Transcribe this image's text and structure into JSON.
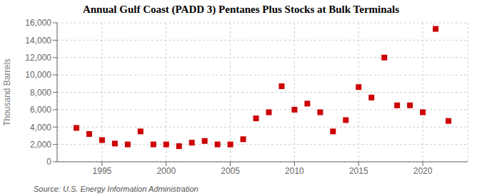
{
  "chart_data": {
    "type": "scatter",
    "title": "Annual Gulf Coast (PADD 3) Pentanes Plus Stocks at Bulk Terminals",
    "ylabel": "Thousand Barrels",
    "source": "Source: U.S. Energy Information Administration",
    "x": [
      1993,
      1994,
      1995,
      1996,
      1997,
      1998,
      1999,
      2000,
      2001,
      2002,
      2003,
      2004,
      2005,
      2006,
      2007,
      2008,
      2009,
      2010,
      2011,
      2012,
      2013,
      2014,
      2015,
      2016,
      2017,
      2018,
      2019,
      2020,
      2021,
      2022
    ],
    "values": [
      3900,
      3200,
      2500,
      2100,
      2000,
      3500,
      2000,
      2000,
      1800,
      2200,
      2400,
      2000,
      2000,
      2600,
      5000,
      5700,
      8700,
      6000,
      6700,
      5700,
      3500,
      4800,
      8600,
      7400,
      12000,
      6500,
      6500,
      5700,
      15300,
      4700
    ],
    "color": "#cc0000",
    "marker": "square",
    "xlim": [
      1991.5,
      2023.5
    ],
    "xticks": [
      1995,
      2000,
      2005,
      2010,
      2015,
      2020
    ],
    "ylim": [
      0,
      16000
    ],
    "yticks": [
      0,
      {
        "value": 2000,
        "label": "2,000"
      },
      {
        "value": 4000,
        "label": "4,000"
      },
      {
        "value": 6000,
        "label": "6,000"
      },
      {
        "value": 8000,
        "label": "8,000"
      },
      {
        "value": 10000,
        "label": "10,000"
      },
      {
        "value": 12000,
        "label": "12,000"
      },
      {
        "value": 14000,
        "label": "14,000"
      },
      {
        "value": 16000,
        "label": "16,000"
      }
    ],
    "grid": true
  }
}
